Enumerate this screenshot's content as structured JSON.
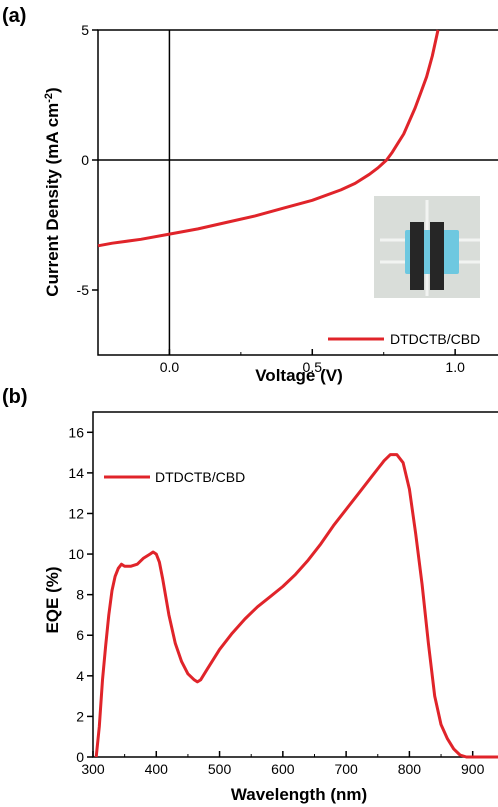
{
  "chart_data": [
    {
      "panel": "(a)",
      "type": "line",
      "xlabel": "Voltage (V)",
      "ylabel": "Current Density (mA cm⁻²)",
      "xlim": [
        -0.25,
        1.15
      ],
      "ylim": [
        -7.5,
        5
      ],
      "xticks": [
        0.0,
        0.5,
        1.0
      ],
      "xtick_labels": [
        "0.0",
        "0.5",
        "1.0"
      ],
      "yticks": [
        5,
        0,
        -5
      ],
      "ytick_labels": [
        "5",
        "0",
        "-5"
      ],
      "zero_lines": {
        "x": 0,
        "y": 0
      },
      "legend": {
        "position": "bottom-right"
      },
      "inset": "device photo",
      "series": [
        {
          "name": "DTDCTB/CBD",
          "color": "#e0242a",
          "x": [
            -0.25,
            -0.2,
            -0.1,
            0.0,
            0.1,
            0.2,
            0.3,
            0.4,
            0.5,
            0.6,
            0.65,
            0.7,
            0.73,
            0.76,
            0.78,
            0.8,
            0.82,
            0.84,
            0.86,
            0.88,
            0.9,
            0.92,
            0.94
          ],
          "y": [
            -3.3,
            -3.2,
            -3.05,
            -2.85,
            -2.65,
            -2.4,
            -2.15,
            -1.85,
            -1.55,
            -1.15,
            -0.9,
            -0.55,
            -0.3,
            0.0,
            0.3,
            0.65,
            1.0,
            1.5,
            2.0,
            2.6,
            3.2,
            4.0,
            5.0
          ]
        }
      ]
    },
    {
      "panel": "(b)",
      "type": "line",
      "xlabel": "Wavelength (nm)",
      "ylabel": "EQE (%)",
      "xlim": [
        300,
        940
      ],
      "ylim": [
        0,
        17
      ],
      "xticks": [
        300,
        400,
        500,
        600,
        700,
        800,
        900
      ],
      "xtick_labels": [
        "300",
        "400",
        "500",
        "600",
        "700",
        "800",
        "900"
      ],
      "yticks": [
        0,
        2,
        4,
        6,
        8,
        10,
        12,
        14,
        16
      ],
      "ytick_labels": [
        "0",
        "2",
        "4",
        "6",
        "8",
        "10",
        "12",
        "14",
        "16"
      ],
      "legend": {
        "position": "top-left"
      },
      "series": [
        {
          "name": "DTDCTB/CBD",
          "color": "#e0242a",
          "x": [
            305,
            310,
            315,
            320,
            325,
            330,
            335,
            340,
            345,
            350,
            360,
            370,
            380,
            390,
            395,
            400,
            405,
            410,
            420,
            430,
            440,
            450,
            460,
            465,
            470,
            480,
            500,
            520,
            540,
            560,
            580,
            600,
            620,
            640,
            660,
            680,
            700,
            720,
            740,
            760,
            770,
            780,
            790,
            800,
            810,
            820,
            830,
            840,
            850,
            860,
            870,
            880,
            890,
            900,
            910,
            920,
            930,
            940
          ],
          "y": [
            0.0,
            1.5,
            3.8,
            5.5,
            7.0,
            8.2,
            8.9,
            9.3,
            9.5,
            9.4,
            9.4,
            9.5,
            9.8,
            10.0,
            10.1,
            10.0,
            9.6,
            8.8,
            7.0,
            5.6,
            4.7,
            4.1,
            3.8,
            3.7,
            3.8,
            4.3,
            5.3,
            6.1,
            6.8,
            7.4,
            7.9,
            8.4,
            9.0,
            9.7,
            10.5,
            11.4,
            12.2,
            13.0,
            13.8,
            14.6,
            14.9,
            14.9,
            14.5,
            13.2,
            11.0,
            8.5,
            5.6,
            3.0,
            1.6,
            0.9,
            0.4,
            0.1,
            0.0,
            0.0,
            0.0,
            0.0,
            0.0,
            0.0
          ]
        }
      ]
    }
  ]
}
